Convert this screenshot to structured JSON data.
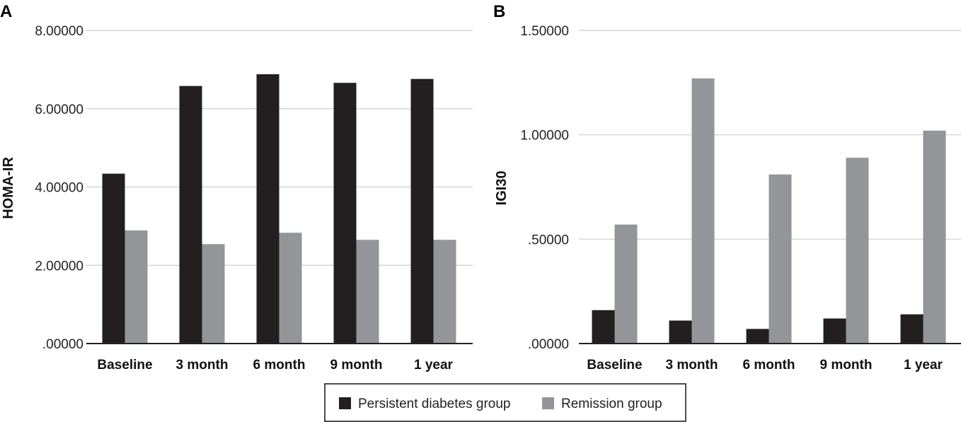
{
  "colors": {
    "persistent": "#231f20",
    "remission": "#939598",
    "grid": "#cfcfcf",
    "axis": "#222222"
  },
  "legend": {
    "items": [
      {
        "label": "Persistent diabetes group",
        "color": "#231f20"
      },
      {
        "label": "Remission group",
        "color": "#939598"
      }
    ]
  },
  "chart_data": [
    {
      "panel": "A",
      "type": "bar",
      "title": "",
      "xlabel": "",
      "ylabel": "HOMA-IR",
      "ylim": [
        0,
        8
      ],
      "yticks": [
        0,
        2,
        4,
        6,
        8
      ],
      "ytick_labels": [
        ".00000",
        "2.00000",
        "4.00000",
        "6.00000",
        "8.00000"
      ],
      "grid": true,
      "categories": [
        "Baseline",
        "3 month",
        "6 month",
        "9 month",
        "1 year"
      ],
      "series": [
        {
          "name": "Persistent diabetes group",
          "values": [
            4.34,
            6.58,
            6.88,
            6.66,
            6.76
          ]
        },
        {
          "name": "Remission group",
          "values": [
            2.89,
            2.54,
            2.83,
            2.65,
            2.65
          ]
        }
      ]
    },
    {
      "panel": "B",
      "type": "bar",
      "title": "",
      "xlabel": "",
      "ylabel": "IGI30",
      "ylim": [
        0,
        1.5
      ],
      "yticks": [
        0,
        0.5,
        1.0,
        1.5
      ],
      "ytick_labels": [
        ".00000",
        ".50000",
        "1.00000",
        "1.50000"
      ],
      "grid": true,
      "categories": [
        "Baseline",
        "3 month",
        "6 month",
        "9 month",
        "1 year"
      ],
      "series": [
        {
          "name": "Persistent diabetes group",
          "values": [
            0.16,
            0.11,
            0.07,
            0.12,
            0.14
          ]
        },
        {
          "name": "Remission group",
          "values": [
            0.57,
            1.27,
            0.81,
            0.89,
            1.02
          ]
        }
      ]
    }
  ]
}
